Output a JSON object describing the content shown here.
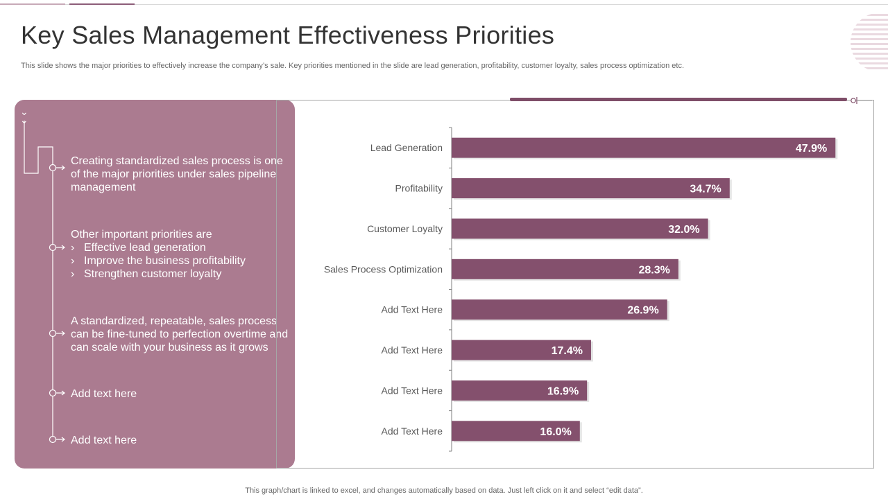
{
  "title": "Key Sales Management Effectiveness Priorities",
  "subtitle": "This slide shows the major priorities to effectively increase the company’s sale. Key priorities mentioned in the slide are lead generation, profitability, customer loyalty, sales process optimization etc.",
  "colors": {
    "bar": "#84506d",
    "panel": "#ab7b90",
    "accent": "#7e4d68",
    "axis": "#7f7f7f"
  },
  "timeline": {
    "chevron_icon": "double-chevron-down-icon",
    "items": [
      {
        "text": "Creating standardized sales process is one of the major priorities under sales pipeline management"
      },
      {
        "text": "Other important priorities are",
        "subitems": [
          "Effective lead generation",
          "Improve the business profitability",
          "Strengthen customer loyalty"
        ],
        "bullet": "›"
      },
      {
        "text": "A standardized, repeatable, sales process can be fine-tuned  to perfection overtime and can scale with your business as it grows"
      },
      {
        "text": "Add text here"
      },
      {
        "text": "Add text here"
      }
    ]
  },
  "chart_data": {
    "type": "bar",
    "orientation": "horizontal",
    "categories": [
      "Lead Generation",
      "Profitability",
      "Customer Loyalty",
      "Sales Process Optimization",
      "Add Text Here",
      "Add Text Here",
      "Add Text Here",
      "Add Text Here"
    ],
    "values": [
      47.9,
      34.7,
      32.0,
      28.3,
      26.9,
      17.4,
      16.9,
      16.0
    ],
    "value_labels": [
      "47.9%",
      "34.7%",
      "32.0%",
      "28.3%",
      "26.9%",
      "17.4%",
      "16.9%",
      "16.0%"
    ],
    "unit": "%",
    "xlim": [
      0,
      50
    ],
    "title": "",
    "xlabel": "",
    "ylabel": "",
    "grid": false,
    "legend": "none"
  },
  "footer": "This graph/chart is linked to excel,  and changes automatically based on data. Just left click on it and select “edit data”."
}
